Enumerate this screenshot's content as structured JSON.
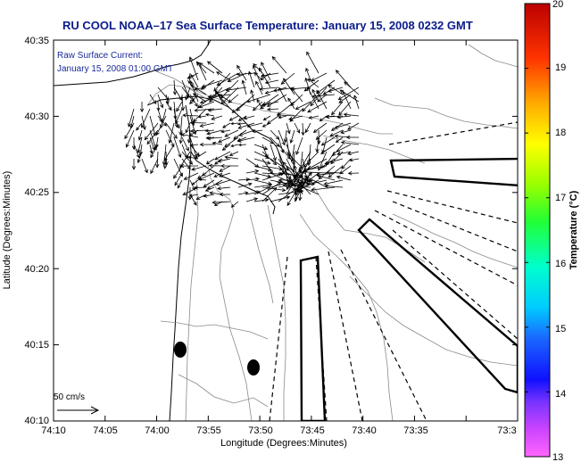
{
  "title": "RU COOL  NOAA–17  Sea Surface Temperature:  January 15, 2008 0232 GMT",
  "annotation": {
    "line1": "Raw Surface Current:",
    "line2": "January 15, 2008 01:00 GMT"
  },
  "scale_arrow": {
    "label": "50 cm/s"
  },
  "axes": {
    "xlabel": "Longitude (Degrees:Minutes)",
    "ylabel": "Latitude (Degrees:Minutes)",
    "x_ticks": [
      "74:10",
      "74:05",
      "74:00",
      "73:55",
      "73:50",
      "73:45",
      "73:40",
      "73:35",
      "73:3"
    ],
    "y_ticks": [
      "40:35",
      "40:30",
      "40:25",
      "40:20",
      "40:15",
      "40:10"
    ]
  },
  "colorbar": {
    "title": "Temperature (°C)",
    "min": 13,
    "max": 20,
    "ticks": [
      "20",
      "19",
      "18",
      "17",
      "16",
      "15",
      "14",
      "13"
    ]
  },
  "colors": {
    "title": "#0a1c8c",
    "land": "#ffffff",
    "contour": "#888888",
    "vectors": "#000000"
  }
}
